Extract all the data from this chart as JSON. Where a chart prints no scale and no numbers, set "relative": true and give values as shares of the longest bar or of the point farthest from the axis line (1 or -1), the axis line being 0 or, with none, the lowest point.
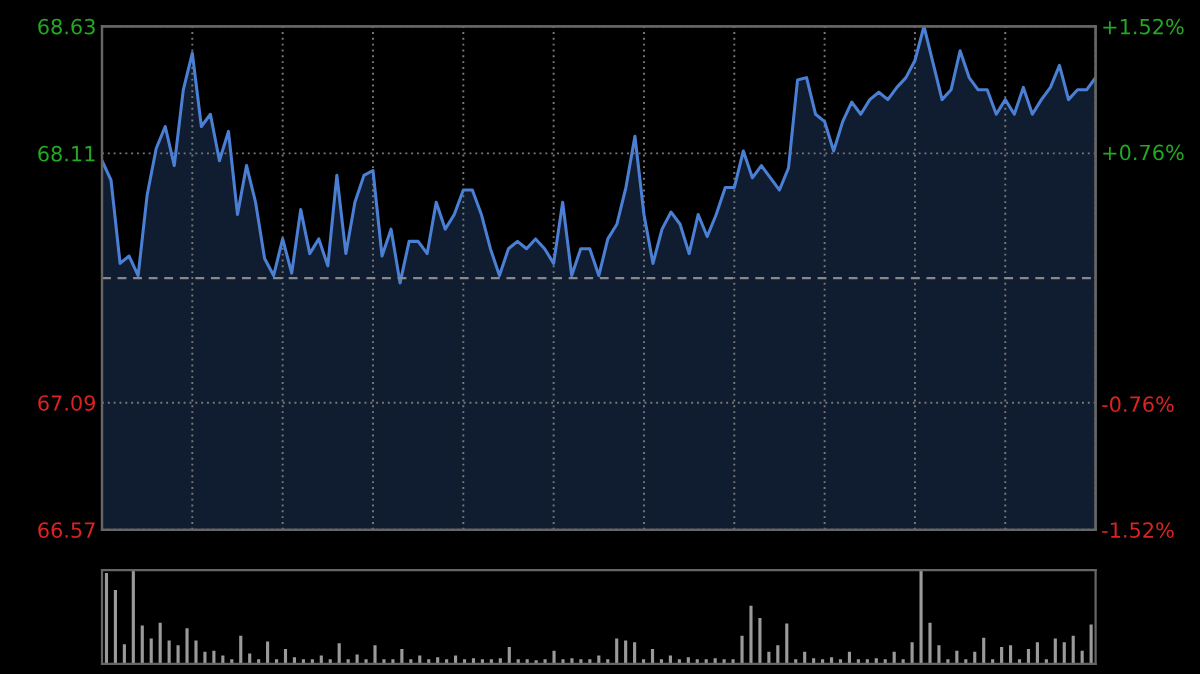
{
  "chart_data": [
    {
      "type": "area",
      "categories": [
        null,
        null,
        null,
        null,
        null,
        null,
        null,
        null,
        null,
        null,
        null,
        null,
        null,
        null,
        null,
        null,
        null,
        null,
        null,
        null,
        null,
        null,
        null,
        null,
        null,
        null,
        null,
        null,
        null,
        null,
        null,
        null,
        null,
        null,
        null,
        null,
        null,
        null,
        null,
        null,
        null,
        null,
        null,
        null,
        null,
        null,
        null,
        null,
        null,
        null,
        null,
        null,
        null,
        null,
        null,
        null,
        null,
        null,
        null,
        null,
        null,
        null,
        null,
        null,
        null,
        null,
        null,
        null,
        null,
        null,
        null,
        null,
        null,
        null,
        null,
        null,
        null,
        null,
        null,
        null,
        null,
        null,
        null,
        null,
        null,
        null,
        null,
        null,
        null,
        null,
        null,
        null,
        null,
        null,
        null,
        null,
        null,
        null,
        null,
        null,
        null,
        null,
        null,
        null,
        null,
        null,
        null,
        null,
        null,
        null,
        null
      ],
      "ylim": [
        66.57,
        68.63
      ],
      "yticks": [
        66.57,
        67.09,
        68.11,
        68.63
      ],
      "y2lim": [
        -1.52,
        1.52
      ],
      "y2ticks": [
        {
          "value": -1.52,
          "label": "-1.52%"
        },
        {
          "value": -0.76,
          "label": "-0.76%"
        },
        {
          "value": 0.76,
          "label": "+0.76%"
        },
        {
          "value": 1.52,
          "label": "+1.52%"
        }
      ],
      "tick_labels": "y",
      "grid": true,
      "ref_lines": [
        {
          "axis": "y",
          "value": 67.6,
          "line_style": "dashed",
          "color": "#888888"
        }
      ],
      "series": [
        {
          "color": "#4a7fd4",
          "values": [
            68.08,
            68.0,
            67.66,
            67.69,
            67.61,
            67.94,
            68.13,
            68.22,
            68.06,
            68.37,
            68.52,
            68.22,
            68.27,
            68.08,
            68.2,
            67.86,
            68.06,
            67.91,
            67.68,
            67.61,
            67.76,
            67.62,
            67.88,
            67.7,
            67.76,
            67.65,
            68.02,
            67.7,
            67.91,
            68.02,
            68.04,
            67.69,
            67.8,
            67.58,
            67.75,
            67.75,
            67.7,
            67.91,
            67.8,
            67.86,
            67.96,
            67.96,
            67.86,
            67.72,
            67.61,
            67.72,
            67.75,
            67.72,
            67.76,
            67.72,
            67.66,
            67.91,
            67.61,
            67.72,
            67.72,
            67.61,
            67.76,
            67.82,
            67.97,
            68.18,
            67.86,
            67.66,
            67.8,
            67.87,
            67.82,
            67.7,
            67.86,
            67.77,
            67.86,
            67.97,
            67.97,
            68.12,
            68.01,
            68.06,
            68.01,
            67.96,
            68.05,
            68.41,
            68.42,
            68.27,
            68.24,
            68.12,
            68.24,
            68.32,
            68.27,
            68.33,
            68.36,
            68.33,
            68.38,
            68.42,
            68.49,
            68.63,
            68.48,
            68.33,
            68.37,
            68.53,
            68.42,
            68.37,
            68.37,
            68.27,
            68.33,
            68.27,
            68.38,
            68.27,
            68.33,
            68.38,
            68.47,
            68.33,
            68.37,
            68.37,
            68.42
          ]
        }
      ]
    },
    {
      "type": "bar",
      "relative": true,
      "tick_labels": false,
      "categories": [
        null,
        null,
        null,
        null,
        null,
        null,
        null,
        null,
        null,
        null,
        null,
        null,
        null,
        null,
        null,
        null,
        null,
        null,
        null,
        null,
        null,
        null,
        null,
        null,
        null,
        null,
        null,
        null,
        null,
        null,
        null,
        null,
        null,
        null,
        null,
        null,
        null,
        null,
        null,
        null,
        null,
        null,
        null,
        null,
        null,
        null,
        null,
        null,
        null,
        null,
        null,
        null,
        null,
        null,
        null,
        null,
        null,
        null,
        null,
        null,
        null,
        null,
        null,
        null,
        null,
        null,
        null,
        null,
        null,
        null,
        null,
        null,
        null,
        null,
        null,
        null,
        null,
        null,
        null,
        null,
        null,
        null,
        null,
        null,
        null,
        null,
        null,
        null,
        null,
        null,
        null,
        null,
        null,
        null,
        null,
        null,
        null,
        null,
        null,
        null,
        null,
        null,
        null,
        null,
        null,
        null,
        null,
        null,
        null,
        null,
        null
      ],
      "series": [
        {
          "color": "#9a9a9a",
          "values": [
            0.97,
            0.79,
            0.21,
            1,
            0.41,
            0.27,
            0.44,
            0.25,
            0.2,
            0.38,
            0.25,
            0.13,
            0.14,
            0.09,
            0.05,
            0.3,
            0.11,
            0.05,
            0.24,
            0.05,
            0.16,
            0.07,
            0.05,
            0.05,
            0.09,
            0.05,
            0.22,
            0.05,
            0.1,
            0.05,
            0.2,
            0.05,
            0.05,
            0.16,
            0.05,
            0.09,
            0.05,
            0.07,
            0.05,
            0.09,
            0.05,
            0.06,
            0.05,
            0.05,
            0.06,
            0.18,
            0.05,
            0.05,
            0.04,
            0.05,
            0.14,
            0.05,
            0.06,
            0.05,
            0.05,
            0.09,
            0.05,
            0.27,
            0.25,
            0.23,
            0.05,
            0.16,
            0.05,
            0.09,
            0.05,
            0.07,
            0.05,
            0.05,
            0.06,
            0.05,
            0.05,
            0.3,
            0.62,
            0.49,
            0.13,
            0.2,
            0.43,
            0.05,
            0.13,
            0.06,
            0.05,
            0.07,
            0.05,
            0.13,
            0.05,
            0.05,
            0.06,
            0.05,
            0.13,
            0.05,
            0.23,
            1,
            0.44,
            0.2,
            0.05,
            0.14,
            0.05,
            0.13,
            0.28,
            0.05,
            0.18,
            0.2,
            0.05,
            0.16,
            0.23,
            0.05,
            0.27,
            0.23,
            0.3,
            0.14,
            0.42
          ]
        }
      ]
    }
  ]
}
